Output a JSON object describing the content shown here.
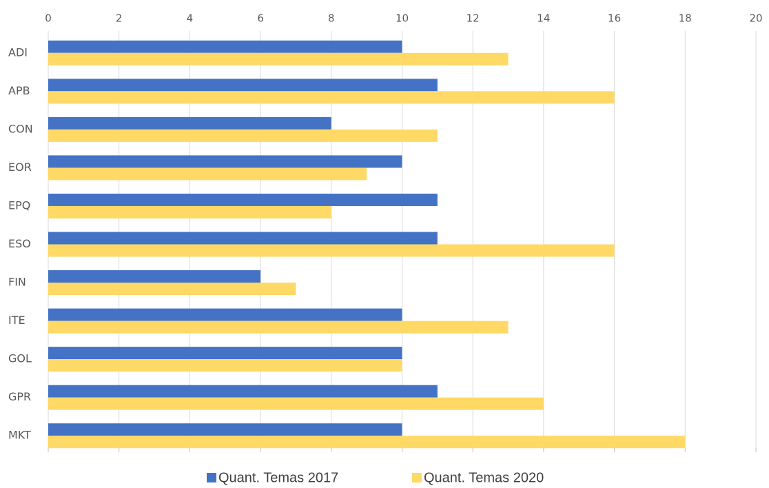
{
  "chart_data": {
    "type": "bar",
    "orientation": "horizontal",
    "categories": [
      "ADI",
      "APB",
      "CON",
      "EOR",
      "EPQ",
      "ESO",
      "FIN",
      "ITE",
      "GOL",
      "GPR",
      "MKT"
    ],
    "series": [
      {
        "name": "Quant. Temas 2017",
        "color": "#4472c4",
        "values": [
          10,
          11,
          8,
          10,
          11,
          11,
          6,
          10,
          10,
          11,
          10
        ]
      },
      {
        "name": "Quant. Temas 2020",
        "color": "#ffd966",
        "values": [
          13,
          16,
          11,
          9,
          8,
          16,
          7,
          13,
          10,
          14,
          18
        ]
      }
    ],
    "xlim": [
      0,
      20
    ],
    "xticks": [
      0,
      2,
      4,
      6,
      8,
      10,
      12,
      14,
      16,
      18,
      20
    ],
    "grid": true,
    "legend": "bottom"
  }
}
